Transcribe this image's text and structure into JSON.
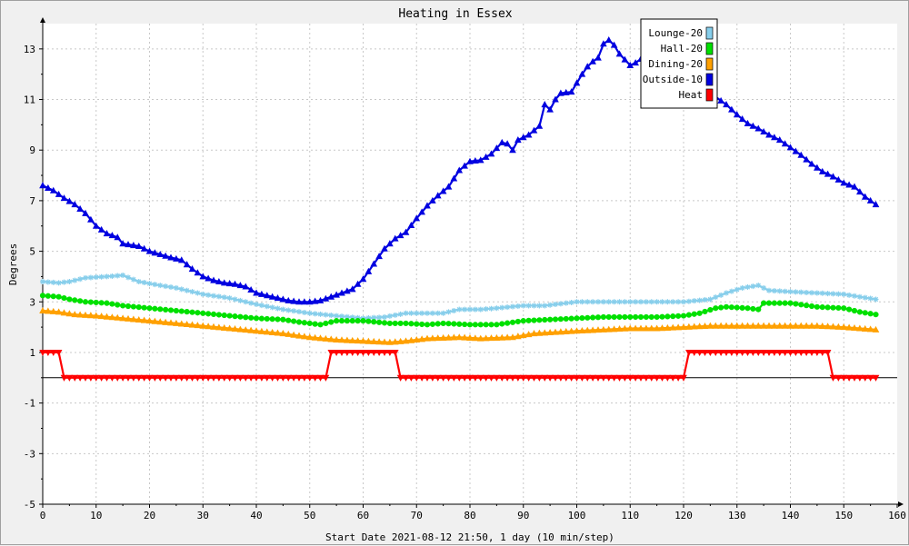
{
  "chart_data": {
    "type": "line",
    "title": "Heating in Essex",
    "xlabel": "Start Date 2021-08-12 21:50, 1 day (10 min/step)",
    "ylabel": "Degrees",
    "xlim": [
      0,
      160
    ],
    "ylim": [
      -5,
      14
    ],
    "x_ticks": [
      "0",
      "10",
      "20",
      "30",
      "40",
      "50",
      "60",
      "70",
      "80",
      "90",
      "100",
      "110",
      "120",
      "130",
      "140",
      "150",
      "160"
    ],
    "y_ticks": [
      "-5",
      "-3",
      "-1",
      "1",
      "3",
      "5",
      "7",
      "9",
      "11",
      "13"
    ],
    "grid": true,
    "legend_position": "top-right",
    "legend": [
      {
        "label": "Lounge-20",
        "color": "#87ceeb"
      },
      {
        "label": "Hall-20",
        "color": "#00e000"
      },
      {
        "label": "Dining-20",
        "color": "#ffa000"
      },
      {
        "label": "Outside-10",
        "color": "#0000e0"
      },
      {
        "label": "Heat",
        "color": "#ff0000"
      }
    ],
    "series": [
      {
        "name": "Lounge-20",
        "color": "#87ceeb",
        "marker": "star",
        "points": [
          [
            0,
            3.8
          ],
          [
            3,
            3.75
          ],
          [
            5,
            3.8
          ],
          [
            8,
            3.95
          ],
          [
            12,
            4.0
          ],
          [
            15,
            4.05
          ],
          [
            18,
            3.8
          ],
          [
            22,
            3.65
          ],
          [
            25,
            3.55
          ],
          [
            30,
            3.3
          ],
          [
            35,
            3.15
          ],
          [
            40,
            2.9
          ],
          [
            45,
            2.7
          ],
          [
            50,
            2.55
          ],
          [
            55,
            2.45
          ],
          [
            60,
            2.35
          ],
          [
            64,
            2.4
          ],
          [
            68,
            2.55
          ],
          [
            72,
            2.55
          ],
          [
            75,
            2.55
          ],
          [
            78,
            2.7
          ],
          [
            82,
            2.7
          ],
          [
            85,
            2.75
          ],
          [
            90,
            2.85
          ],
          [
            94,
            2.85
          ],
          [
            98,
            2.95
          ],
          [
            100,
            3.0
          ],
          [
            103,
            3.0
          ],
          [
            107,
            3.0
          ],
          [
            110,
            3.0
          ],
          [
            115,
            3.0
          ],
          [
            120,
            3.0
          ],
          [
            125,
            3.1
          ],
          [
            128,
            3.35
          ],
          [
            131,
            3.55
          ],
          [
            134,
            3.65
          ],
          [
            136,
            3.45
          ],
          [
            140,
            3.4
          ],
          [
            145,
            3.35
          ],
          [
            150,
            3.3
          ],
          [
            153,
            3.2
          ],
          [
            156,
            3.1
          ]
        ]
      },
      {
        "name": "Hall-20",
        "color": "#00e000",
        "marker": "circle",
        "points": [
          [
            0,
            3.25
          ],
          [
            3,
            3.2
          ],
          [
            5,
            3.1
          ],
          [
            8,
            3.0
          ],
          [
            12,
            2.95
          ],
          [
            15,
            2.85
          ],
          [
            20,
            2.75
          ],
          [
            25,
            2.65
          ],
          [
            30,
            2.55
          ],
          [
            35,
            2.45
          ],
          [
            40,
            2.35
          ],
          [
            45,
            2.3
          ],
          [
            48,
            2.2
          ],
          [
            52,
            2.1
          ],
          [
            55,
            2.25
          ],
          [
            60,
            2.25
          ],
          [
            65,
            2.15
          ],
          [
            68,
            2.15
          ],
          [
            72,
            2.1
          ],
          [
            75,
            2.15
          ],
          [
            80,
            2.1
          ],
          [
            85,
            2.1
          ],
          [
            90,
            2.25
          ],
          [
            95,
            2.3
          ],
          [
            100,
            2.35
          ],
          [
            105,
            2.4
          ],
          [
            110,
            2.4
          ],
          [
            115,
            2.4
          ],
          [
            120,
            2.45
          ],
          [
            123,
            2.55
          ],
          [
            126,
            2.75
          ],
          [
            128,
            2.8
          ],
          [
            132,
            2.75
          ],
          [
            134,
            2.7
          ],
          [
            135,
            2.95
          ],
          [
            140,
            2.95
          ],
          [
            145,
            2.8
          ],
          [
            150,
            2.75
          ],
          [
            153,
            2.6
          ],
          [
            156,
            2.5
          ]
        ]
      },
      {
        "name": "Dining-20",
        "color": "#ffa000",
        "marker": "triangle",
        "points": [
          [
            0,
            2.65
          ],
          [
            3,
            2.6
          ],
          [
            6,
            2.5
          ],
          [
            10,
            2.45
          ],
          [
            15,
            2.35
          ],
          [
            20,
            2.25
          ],
          [
            25,
            2.15
          ],
          [
            30,
            2.05
          ],
          [
            35,
            1.95
          ],
          [
            40,
            1.85
          ],
          [
            45,
            1.75
          ],
          [
            50,
            1.6
          ],
          [
            55,
            1.5
          ],
          [
            60,
            1.45
          ],
          [
            65,
            1.4
          ],
          [
            68,
            1.45
          ],
          [
            72,
            1.55
          ],
          [
            78,
            1.6
          ],
          [
            82,
            1.55
          ],
          [
            88,
            1.6
          ],
          [
            92,
            1.75
          ],
          [
            96,
            1.8
          ],
          [
            100,
            1.85
          ],
          [
            105,
            1.9
          ],
          [
            110,
            1.95
          ],
          [
            115,
            1.95
          ],
          [
            120,
            2.0
          ],
          [
            125,
            2.05
          ],
          [
            130,
            2.05
          ],
          [
            135,
            2.05
          ],
          [
            140,
            2.05
          ],
          [
            145,
            2.05
          ],
          [
            150,
            2.0
          ],
          [
            153,
            1.95
          ],
          [
            156,
            1.9
          ]
        ]
      },
      {
        "name": "Outside-10",
        "color": "#0000e0",
        "marker": "triangle",
        "points": [
          [
            0,
            7.6
          ],
          [
            2,
            7.4
          ],
          [
            4,
            7.1
          ],
          [
            6,
            6.85
          ],
          [
            8,
            6.5
          ],
          [
            10,
            6.0
          ],
          [
            12,
            5.7
          ],
          [
            14,
            5.55
          ],
          [
            15,
            5.3
          ],
          [
            18,
            5.2
          ],
          [
            20,
            5.0
          ],
          [
            24,
            4.75
          ],
          [
            26,
            4.65
          ],
          [
            28,
            4.3
          ],
          [
            30,
            4.0
          ],
          [
            32,
            3.85
          ],
          [
            34,
            3.75
          ],
          [
            36,
            3.7
          ],
          [
            38,
            3.6
          ],
          [
            40,
            3.35
          ],
          [
            42,
            3.25
          ],
          [
            44,
            3.15
          ],
          [
            46,
            3.05
          ],
          [
            48,
            3.0
          ],
          [
            50,
            3.0
          ],
          [
            52,
            3.05
          ],
          [
            54,
            3.2
          ],
          [
            56,
            3.35
          ],
          [
            58,
            3.5
          ],
          [
            60,
            3.9
          ],
          [
            62,
            4.5
          ],
          [
            64,
            5.1
          ],
          [
            66,
            5.5
          ],
          [
            68,
            5.75
          ],
          [
            70,
            6.3
          ],
          [
            72,
            6.8
          ],
          [
            74,
            7.2
          ],
          [
            76,
            7.55
          ],
          [
            78,
            8.2
          ],
          [
            80,
            8.55
          ],
          [
            82,
            8.6
          ],
          [
            84,
            8.85
          ],
          [
            86,
            9.3
          ],
          [
            87,
            9.25
          ],
          [
            88,
            9.0
          ],
          [
            89,
            9.4
          ],
          [
            91,
            9.6
          ],
          [
            93,
            9.95
          ],
          [
            94,
            10.8
          ],
          [
            95,
            10.6
          ],
          [
            96,
            11.0
          ],
          [
            97,
            11.25
          ],
          [
            99,
            11.3
          ],
          [
            101,
            12.0
          ],
          [
            102,
            12.3
          ],
          [
            103,
            12.5
          ],
          [
            104,
            12.65
          ],
          [
            105,
            13.2
          ],
          [
            106,
            13.35
          ],
          [
            107,
            13.15
          ],
          [
            108,
            12.8
          ],
          [
            110,
            12.35
          ],
          [
            111,
            12.45
          ],
          [
            112,
            12.6
          ],
          [
            113,
            12.75
          ],
          [
            114,
            12.15
          ],
          [
            116,
            11.85
          ],
          [
            118,
            11.5
          ],
          [
            120,
            11.45
          ],
          [
            122,
            11.3
          ],
          [
            124,
            11.25
          ],
          [
            126,
            11.1
          ],
          [
            128,
            10.8
          ],
          [
            130,
            10.4
          ],
          [
            132,
            10.05
          ],
          [
            134,
            9.85
          ],
          [
            136,
            9.6
          ],
          [
            138,
            9.4
          ],
          [
            140,
            9.1
          ],
          [
            142,
            8.8
          ],
          [
            144,
            8.45
          ],
          [
            146,
            8.15
          ],
          [
            148,
            7.95
          ],
          [
            150,
            7.7
          ],
          [
            152,
            7.55
          ],
          [
            154,
            7.15
          ],
          [
            155,
            7.0
          ],
          [
            156,
            6.85
          ]
        ]
      },
      {
        "name": "Heat",
        "color": "#ff0000",
        "marker": "triangle-down",
        "points": [
          [
            0,
            1
          ],
          [
            3,
            1
          ],
          [
            4,
            0
          ],
          [
            53,
            0
          ],
          [
            54,
            1
          ],
          [
            66,
            1
          ],
          [
            67,
            0
          ],
          [
            120,
            0
          ],
          [
            121,
            1
          ],
          [
            147,
            1
          ],
          [
            148,
            0
          ],
          [
            156,
            0
          ]
        ]
      }
    ]
  }
}
